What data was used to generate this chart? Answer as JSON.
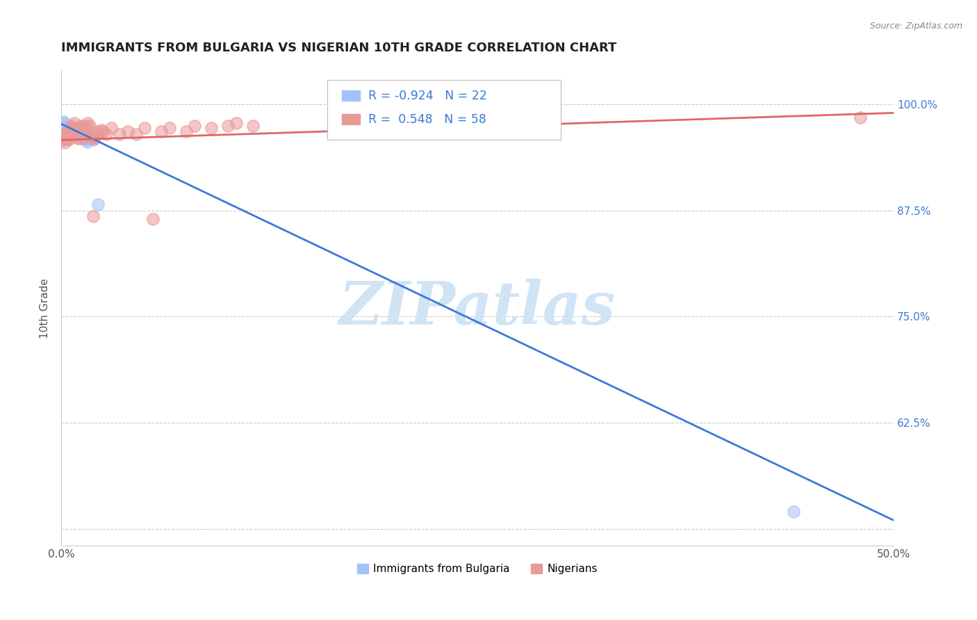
{
  "title": "IMMIGRANTS FROM BULGARIA VS NIGERIAN 10TH GRADE CORRELATION CHART",
  "source": "Source: ZipAtlas.com",
  "ylabel": "10th Grade",
  "x_tick_labels": [
    "0.0%",
    "",
    "",
    "",
    "",
    "50.0%"
  ],
  "y_ticks": [
    0.5,
    0.625,
    0.75,
    0.875,
    1.0
  ],
  "y_tick_labels_right": [
    "",
    "62.5%",
    "75.0%",
    "87.5%",
    "100.0%"
  ],
  "xlim": [
    0.0,
    0.5
  ],
  "ylim": [
    0.48,
    1.04
  ],
  "legend_r_bulgaria": "-0.924",
  "legend_n_bulgaria": "22",
  "legend_r_nigerian": " 0.548",
  "legend_n_nigerian": "58",
  "bulgaria_color": "#a4c2f4",
  "nigerian_color": "#ea9999",
  "bulgaria_line_color": "#3c78d8",
  "nigerian_line_color": "#e06666",
  "text_color_blue": "#3c78d8",
  "watermark_text": "ZIPatlas",
  "watermark_color": "#d0e4f5",
  "bottom_legend_label1": "Immigrants from Bulgaria",
  "bottom_legend_label2": "Nigerians",
  "bulgaria_scatter_x": [
    0.001,
    0.002,
    0.003,
    0.004,
    0.005,
    0.006,
    0.007,
    0.008,
    0.009,
    0.01,
    0.01,
    0.011,
    0.012,
    0.013,
    0.014,
    0.015,
    0.016,
    0.017,
    0.018,
    0.019,
    0.022,
    0.44
  ],
  "bulgaria_scatter_y": [
    0.98,
    0.978,
    0.976,
    0.974,
    0.972,
    0.97,
    0.968,
    0.968,
    0.966,
    0.965,
    0.963,
    0.96,
    0.962,
    0.965,
    0.96,
    0.958,
    0.956,
    0.96,
    0.962,
    0.958,
    0.882,
    0.52
  ],
  "nigerian_scatter_x": [
    0.001,
    0.002,
    0.002,
    0.003,
    0.003,
    0.004,
    0.004,
    0.005,
    0.005,
    0.006,
    0.006,
    0.007,
    0.007,
    0.008,
    0.008,
    0.008,
    0.009,
    0.009,
    0.01,
    0.01,
    0.011,
    0.012,
    0.012,
    0.013,
    0.013,
    0.014,
    0.015,
    0.015,
    0.016,
    0.017,
    0.018,
    0.019,
    0.02,
    0.021,
    0.022,
    0.024,
    0.025,
    0.027,
    0.03,
    0.035,
    0.04,
    0.045,
    0.05,
    0.055,
    0.06,
    0.065,
    0.075,
    0.08,
    0.09,
    0.1,
    0.105,
    0.115,
    0.17,
    0.19,
    0.22,
    0.25,
    0.29,
    0.48
  ],
  "nigerian_scatter_y": [
    0.958,
    0.955,
    0.962,
    0.96,
    0.965,
    0.958,
    0.97,
    0.96,
    0.968,
    0.965,
    0.975,
    0.968,
    0.972,
    0.97,
    0.965,
    0.978,
    0.968,
    0.972,
    0.965,
    0.96,
    0.968,
    0.96,
    0.975,
    0.968,
    0.972,
    0.975,
    0.97,
    0.965,
    0.978,
    0.975,
    0.96,
    0.868,
    0.96,
    0.968,
    0.965,
    0.97,
    0.968,
    0.965,
    0.972,
    0.965,
    0.968,
    0.965,
    0.972,
    0.865,
    0.968,
    0.972,
    0.968,
    0.975,
    0.972,
    0.975,
    0.978,
    0.975,
    0.97,
    0.98,
    0.978,
    0.975,
    0.978,
    0.985
  ],
  "bulgaria_line_x": [
    0.0,
    0.5
  ],
  "bulgaria_line_y": [
    0.977,
    0.51
  ],
  "nigerian_line_x": [
    0.0,
    0.5
  ],
  "nigerian_line_y": [
    0.958,
    0.99
  ]
}
